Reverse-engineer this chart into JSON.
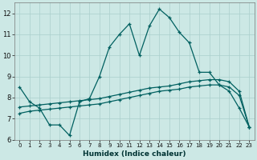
{
  "xlabel": "Humidex (Indice chaleur)",
  "bg_color": "#cce8e5",
  "grid_color": "#aacfcc",
  "line_color": "#006060",
  "xlim": [
    -0.5,
    23.5
  ],
  "ylim": [
    6.0,
    12.5
  ],
  "yticks": [
    6,
    7,
    8,
    9,
    10,
    11,
    12
  ],
  "xticks": [
    0,
    1,
    2,
    3,
    4,
    5,
    6,
    7,
    8,
    9,
    10,
    11,
    12,
    13,
    14,
    15,
    16,
    17,
    18,
    19,
    20,
    21,
    22,
    23
  ],
  "line1_x": [
    0,
    1,
    2,
    3,
    4,
    5,
    6,
    7,
    8,
    9,
    10,
    11,
    12,
    13,
    14,
    15,
    16,
    17,
    18,
    19,
    20,
    21,
    22,
    23
  ],
  "line1_y": [
    8.5,
    7.8,
    7.5,
    6.7,
    6.7,
    6.2,
    7.8,
    7.95,
    9.0,
    10.4,
    11.0,
    11.5,
    10.0,
    11.4,
    12.2,
    11.8,
    11.1,
    10.6,
    9.2,
    9.2,
    8.6,
    8.3,
    7.5,
    6.6
  ],
  "line2_x": [
    0,
    1,
    2,
    3,
    4,
    5,
    6,
    7,
    8,
    9,
    10,
    11,
    12,
    13,
    14,
    15,
    16,
    17,
    18,
    19,
    20,
    21,
    22,
    23
  ],
  "line2_y": [
    7.55,
    7.6,
    7.65,
    7.7,
    7.75,
    7.8,
    7.85,
    7.9,
    7.95,
    8.05,
    8.15,
    8.25,
    8.35,
    8.45,
    8.5,
    8.55,
    8.65,
    8.75,
    8.8,
    8.85,
    8.85,
    8.75,
    8.3,
    6.6
  ],
  "line3_x": [
    0,
    1,
    2,
    3,
    4,
    5,
    6,
    7,
    8,
    9,
    10,
    11,
    12,
    13,
    14,
    15,
    16,
    17,
    18,
    19,
    20,
    21,
    22,
    23
  ],
  "line3_y": [
    7.25,
    7.35,
    7.4,
    7.45,
    7.5,
    7.55,
    7.6,
    7.65,
    7.7,
    7.8,
    7.9,
    8.0,
    8.1,
    8.2,
    8.3,
    8.35,
    8.4,
    8.5,
    8.55,
    8.6,
    8.6,
    8.5,
    8.1,
    6.6
  ]
}
